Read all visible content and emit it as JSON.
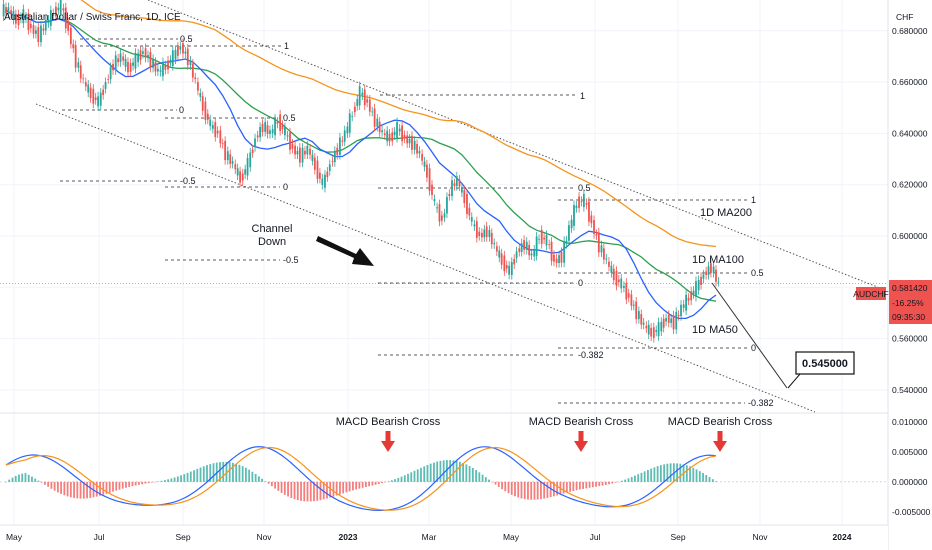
{
  "chart_data": {
    "type": "candlestick",
    "title": "Australian Dollar / Swiss Franc, 1D, ICE",
    "symbol": "AUDCHF",
    "currency": "CHF",
    "last_price": "0.581420",
    "change_pct": "-16.25%",
    "countdown": "09:35:30",
    "target_label": "0.545000",
    "x_ticks": [
      "May",
      "Jul",
      "Sep",
      "Nov",
      "2023",
      "Mar",
      "May",
      "Jul",
      "Sep",
      "Nov",
      "2024"
    ],
    "price_ticks": [
      "0.680000",
      "0.660000",
      "0.640000",
      "0.620000",
      "0.600000",
      "0.580000",
      "0.560000",
      "0.540000"
    ],
    "price_tick_values": [
      0.68,
      0.66,
      0.64,
      0.62,
      0.6,
      0.58,
      0.56,
      0.54
    ],
    "macd_ticks": [
      "0.010000",
      "0.005000",
      "0.000000",
      "-0.005000"
    ],
    "macd_tick_values": [
      0.01,
      0.005,
      0.0,
      -0.005
    ],
    "price_ylim": [
      0.531,
      0.692
    ],
    "macd_ylim": [
      -0.0072,
      0.0115
    ],
    "moving_average_labels": [
      {
        "text": "1D MA200",
        "color": "#f7931a"
      },
      {
        "text": "1D MA100",
        "color": "#2e9e4f"
      },
      {
        "text": "1D MA50",
        "color": "#2962ff"
      }
    ],
    "annotations": {
      "channel_label_line1": "Channel",
      "channel_label_line2": "Down",
      "macd_cross_1": "MACD Bearish Cross",
      "macd_cross_2": "MACD Bearish Cross",
      "macd_cross_3": "MACD Bearish Cross"
    },
    "fib_levels_text": [
      "1",
      "0.5",
      "0",
      "-0.5",
      "1",
      "0.5",
      "0",
      "-0.5",
      "0.5",
      "1",
      "0",
      "1",
      "0.5",
      "0",
      "-0.382",
      "-0.382"
    ],
    "series_price": [
      0.688,
      0.684,
      0.686,
      0.681,
      0.678,
      0.683,
      0.687,
      0.69,
      0.68,
      0.668,
      0.66,
      0.655,
      0.652,
      0.66,
      0.667,
      0.67,
      0.665,
      0.669,
      0.672,
      0.668,
      0.664,
      0.666,
      0.67,
      0.674,
      0.669,
      0.66,
      0.65,
      0.643,
      0.64,
      0.632,
      0.628,
      0.622,
      0.628,
      0.638,
      0.643,
      0.64,
      0.645,
      0.64,
      0.634,
      0.631,
      0.634,
      0.627,
      0.62,
      0.628,
      0.634,
      0.64,
      0.648,
      0.656,
      0.652,
      0.645,
      0.64,
      0.638,
      0.642,
      0.638,
      0.636,
      0.632,
      0.624,
      0.612,
      0.606,
      0.618,
      0.622,
      0.614,
      0.605,
      0.6,
      0.602,
      0.596,
      0.59,
      0.586,
      0.594,
      0.597,
      0.592,
      0.6,
      0.598,
      0.59,
      0.592,
      0.603,
      0.613,
      0.614,
      0.605,
      0.596,
      0.59,
      0.584,
      0.581,
      0.576,
      0.57,
      0.565,
      0.562,
      0.564,
      0.568,
      0.566,
      0.572,
      0.576,
      0.58,
      0.585,
      0.588,
      0.581
    ],
    "series_macd_hist_sample": "derived"
  }
}
